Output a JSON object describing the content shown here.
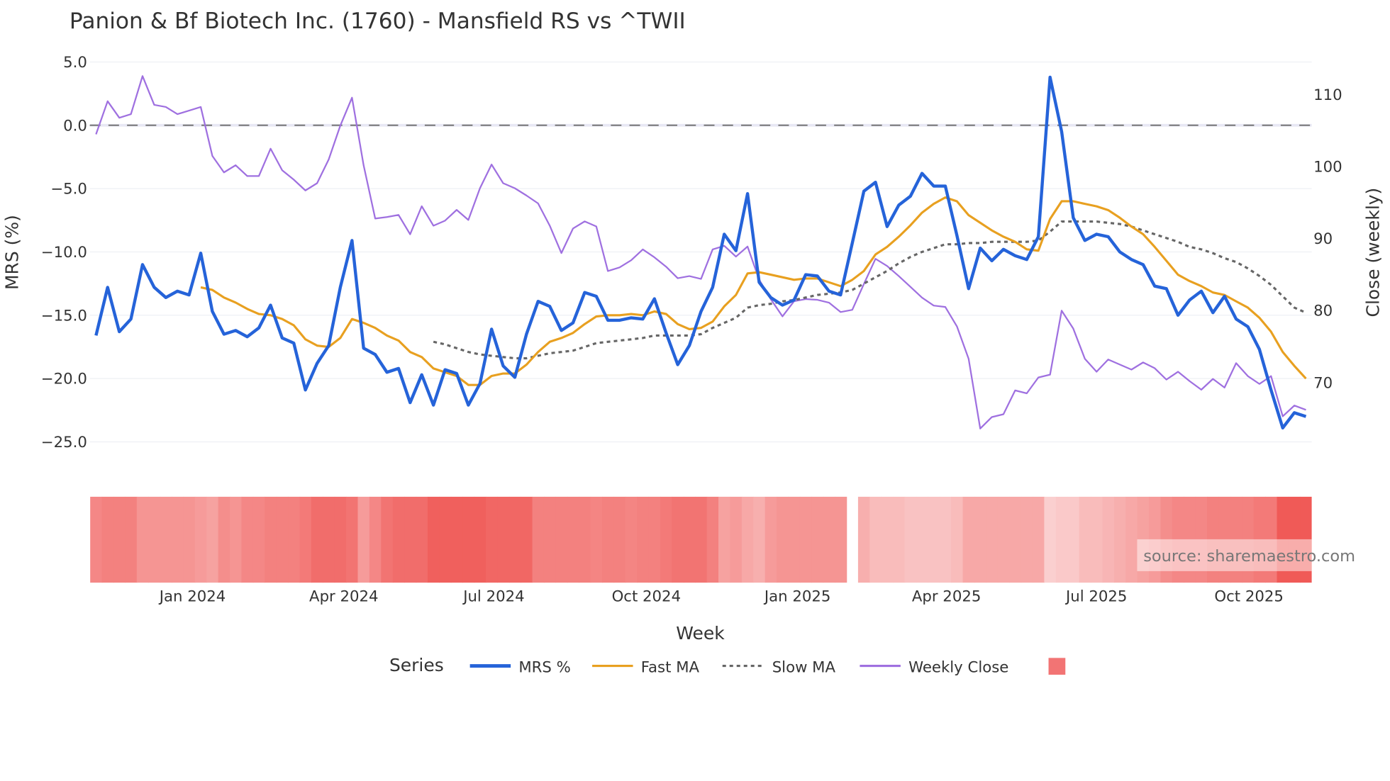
{
  "chart_data": {
    "type": "line",
    "title": "Panion & Bf Biotech Inc. (1760) - Mansfield RS vs ^TWII",
    "xlabel": "Week",
    "ylabel": "MRS (%)",
    "y2label": "Close (weekly)",
    "ylim": [
      -27,
      5.5
    ],
    "y2lim": [
      60.5,
      114
    ],
    "yticks": [
      "5.0",
      "0.0",
      "−5.0",
      "−10.0",
      "−15.0",
      "−20.0",
      "−25.0"
    ],
    "ytick_values": [
      5,
      0,
      -5,
      -10,
      -15,
      -20,
      -25
    ],
    "y2ticks": [
      "110",
      "100",
      "90",
      "80",
      "70"
    ],
    "y2tick_values": [
      110,
      100,
      90,
      80,
      70
    ],
    "xticks": [
      "Jan 2024",
      "Apr 2024",
      "Jul 2024",
      "Oct 2024",
      "Jan 2025",
      "Apr 2025",
      "Jul 2025",
      "Oct 2025"
    ],
    "xtick_week_index": [
      8.3,
      21.3,
      34.2,
      47.3,
      60.3,
      73.1,
      86.0,
      99.1
    ],
    "reference_line": 0,
    "legend_title": "Series",
    "legend_placement": "bottom-center",
    "series": [
      {
        "name": "MRS %",
        "color": "#2563d9",
        "axis": "left",
        "values": [
          -16.6,
          -12.8,
          -16.3,
          -15.3,
          -11.0,
          -12.8,
          -13.6,
          -13.1,
          -13.4,
          -10.1,
          -14.7,
          -16.5,
          -16.2,
          -16.7,
          -16.0,
          -14.2,
          -16.8,
          -17.2,
          -20.9,
          -18.8,
          -17.4,
          -12.8,
          -9.1,
          -17.6,
          -18.1,
          -19.5,
          -19.2,
          -21.9,
          -19.7,
          -22.1,
          -19.3,
          -19.6,
          -22.1,
          -20.4,
          -16.1,
          -19.0,
          -19.9,
          -16.5,
          -13.9,
          -14.3,
          -16.2,
          -15.6,
          -13.2,
          -13.5,
          -15.4,
          -15.4,
          -15.2,
          -15.3,
          -13.7,
          -16.4,
          -18.9,
          -17.4,
          -14.7,
          -12.8,
          -8.6,
          -9.9,
          -5.4,
          -12.4,
          -13.6,
          -14.2,
          -13.8,
          -11.8,
          -11.9,
          -13.1,
          -13.4,
          -9.3,
          -5.2,
          -4.5,
          -8.0,
          -6.3,
          -5.6,
          -3.8,
          -4.8,
          -4.8,
          -8.7,
          -12.9,
          -9.7,
          -10.7,
          -9.8,
          -10.3,
          -10.6,
          -8.8,
          3.8,
          -0.5,
          -7.3,
          -9.1,
          -8.6,
          -8.8,
          -10.0,
          -10.6,
          -11.0,
          -12.7,
          -12.9,
          -15.0,
          -13.8,
          -13.1,
          -14.8,
          -13.5,
          -15.3,
          -15.9,
          -17.7,
          -20.9,
          -23.9,
          -22.7,
          -23.0
        ]
      },
      {
        "name": "Fast MA",
        "color": "#e8a020",
        "axis": "left",
        "values": [
          null,
          null,
          null,
          null,
          null,
          null,
          null,
          null,
          null,
          -12.8,
          -13.0,
          -13.6,
          -14.0,
          -14.5,
          -14.9,
          -15.0,
          -15.3,
          -15.8,
          -16.9,
          -17.4,
          -17.5,
          -16.8,
          -15.3,
          -15.6,
          -16.0,
          -16.6,
          -17.0,
          -17.9,
          -18.3,
          -19.2,
          -19.5,
          -19.8,
          -20.5,
          -20.5,
          -19.8,
          -19.6,
          -19.6,
          -18.9,
          -17.9,
          -17.1,
          -16.8,
          -16.4,
          -15.7,
          -15.1,
          -15.0,
          -15.0,
          -14.9,
          -15.0,
          -14.7,
          -14.9,
          -15.7,
          -16.1,
          -16.0,
          -15.5,
          -14.3,
          -13.4,
          -11.7,
          -11.6,
          -11.8,
          -12.0,
          -12.2,
          -12.1,
          -12.1,
          -12.4,
          -12.7,
          -12.2,
          -11.5,
          -10.2,
          -9.6,
          -8.8,
          -7.9,
          -6.9,
          -6.2,
          -5.7,
          -6.0,
          -7.1,
          -7.7,
          -8.3,
          -8.8,
          -9.2,
          -9.8,
          -9.9,
          -7.4,
          -6.0,
          -6.0,
          -6.2,
          -6.4,
          -6.7,
          -7.3,
          -8.0,
          -8.6,
          -9.6,
          -10.7,
          -11.8,
          -12.3,
          -12.7,
          -13.2,
          -13.4,
          -13.9,
          -14.4,
          -15.2,
          -16.3,
          -17.9,
          -19.0,
          -20.0
        ]
      },
      {
        "name": "Slow MA",
        "color": "#666666",
        "axis": "left",
        "dash": true,
        "values": [
          null,
          null,
          null,
          null,
          null,
          null,
          null,
          null,
          null,
          null,
          null,
          null,
          null,
          null,
          null,
          null,
          null,
          null,
          null,
          null,
          null,
          null,
          null,
          null,
          null,
          null,
          null,
          null,
          null,
          -17.1,
          -17.3,
          -17.6,
          -17.9,
          -18.1,
          -18.2,
          -18.3,
          -18.4,
          -18.4,
          -18.2,
          -18.0,
          -17.9,
          -17.8,
          -17.5,
          -17.2,
          -17.1,
          -17.0,
          -16.9,
          -16.8,
          -16.6,
          -16.6,
          -16.6,
          -16.6,
          -16.5,
          -16.0,
          -15.6,
          -15.2,
          -14.4,
          -14.2,
          -14.1,
          -13.9,
          -13.8,
          -13.6,
          -13.4,
          -13.3,
          -13.2,
          -13.0,
          -12.5,
          -12.0,
          -11.5,
          -10.9,
          -10.4,
          -10.0,
          -9.7,
          -9.4,
          -9.4,
          -9.3,
          -9.3,
          -9.2,
          -9.2,
          -9.2,
          -9.2,
          -9.1,
          -8.4,
          -7.6,
          -7.6,
          -7.6,
          -7.6,
          -7.7,
          -7.8,
          -8.0,
          -8.3,
          -8.6,
          -8.9,
          -9.2,
          -9.6,
          -9.8,
          -10.1,
          -10.5,
          -10.8,
          -11.3,
          -11.9,
          -12.6,
          -13.5,
          -14.4,
          -14.8
        ]
      },
      {
        "name": "Weekly Close",
        "color": "#9f70e0",
        "axis": "right",
        "values": [
          104.5,
          109.1,
          106.8,
          107.3,
          112.6,
          108.6,
          108.3,
          107.3,
          107.8,
          108.3,
          101.5,
          99.2,
          100.2,
          98.7,
          98.7,
          102.5,
          99.5,
          98.2,
          96.7,
          97.7,
          101.0,
          105.7,
          109.6,
          100.2,
          92.8,
          93.0,
          93.3,
          90.6,
          94.5,
          91.8,
          92.5,
          94.0,
          92.6,
          97.0,
          100.3,
          97.7,
          97.0,
          96.0,
          94.9,
          91.8,
          88.0,
          91.4,
          92.4,
          91.7,
          85.5,
          86.0,
          87.0,
          88.5,
          87.4,
          86.1,
          84.5,
          84.8,
          84.4,
          88.5,
          89.0,
          87.5,
          88.9,
          84.3,
          81.6,
          79.2,
          81.3,
          81.6,
          81.5,
          81.1,
          79.8,
          80.1,
          83.7,
          87.2,
          86.2,
          84.8,
          83.3,
          81.8,
          80.7,
          80.5,
          77.8,
          73.3,
          63.6,
          65.2,
          65.6,
          68.9,
          68.5,
          70.7,
          71.1,
          80.0,
          77.5,
          73.3,
          71.5,
          73.2,
          72.5,
          71.8,
          72.8,
          72.0,
          70.4,
          71.5,
          70.2,
          69.0,
          70.5,
          69.3,
          72.7,
          70.9,
          69.8,
          70.9,
          65.3,
          66.8,
          66.2
        ]
      }
    ],
    "heatmap": {
      "color_light": "#fbd6d6",
      "color_dark": "#ef5350",
      "intensity": [
        0.6,
        0.65,
        0.65,
        0.65,
        0.5,
        0.5,
        0.5,
        0.5,
        0.5,
        0.45,
        0.4,
        0.55,
        0.5,
        0.6,
        0.6,
        0.65,
        0.65,
        0.65,
        0.7,
        0.8,
        0.8,
        0.8,
        0.75,
        0.45,
        0.6,
        0.75,
        0.8,
        0.8,
        0.8,
        0.9,
        0.9,
        0.9,
        0.9,
        0.9,
        0.85,
        0.85,
        0.85,
        0.85,
        0.65,
        0.65,
        0.65,
        0.65,
        0.65,
        0.62,
        0.65,
        0.65,
        0.62,
        0.65,
        0.65,
        0.7,
        0.75,
        0.75,
        0.75,
        0.65,
        0.4,
        0.45,
        0.35,
        0.3,
        0.45,
        0.5,
        0.5,
        0.5,
        0.5,
        0.5,
        0.5,
        null,
        0.3,
        0.2,
        0.2,
        0.2,
        0.15,
        0.15,
        0.15,
        0.15,
        0.2,
        0.35,
        0.35,
        0.35,
        0.35,
        0.35,
        0.35,
        0.35,
        0.05,
        0.1,
        0.1,
        0.2,
        0.2,
        0.25,
        0.3,
        0.35,
        0.4,
        0.45,
        0.55,
        0.6,
        0.6,
        0.6,
        0.65,
        0.65,
        0.65,
        0.65,
        0.7,
        0.7,
        0.95,
        0.95,
        0.95
      ]
    }
  },
  "watermark": "source: sharemaestro.com"
}
